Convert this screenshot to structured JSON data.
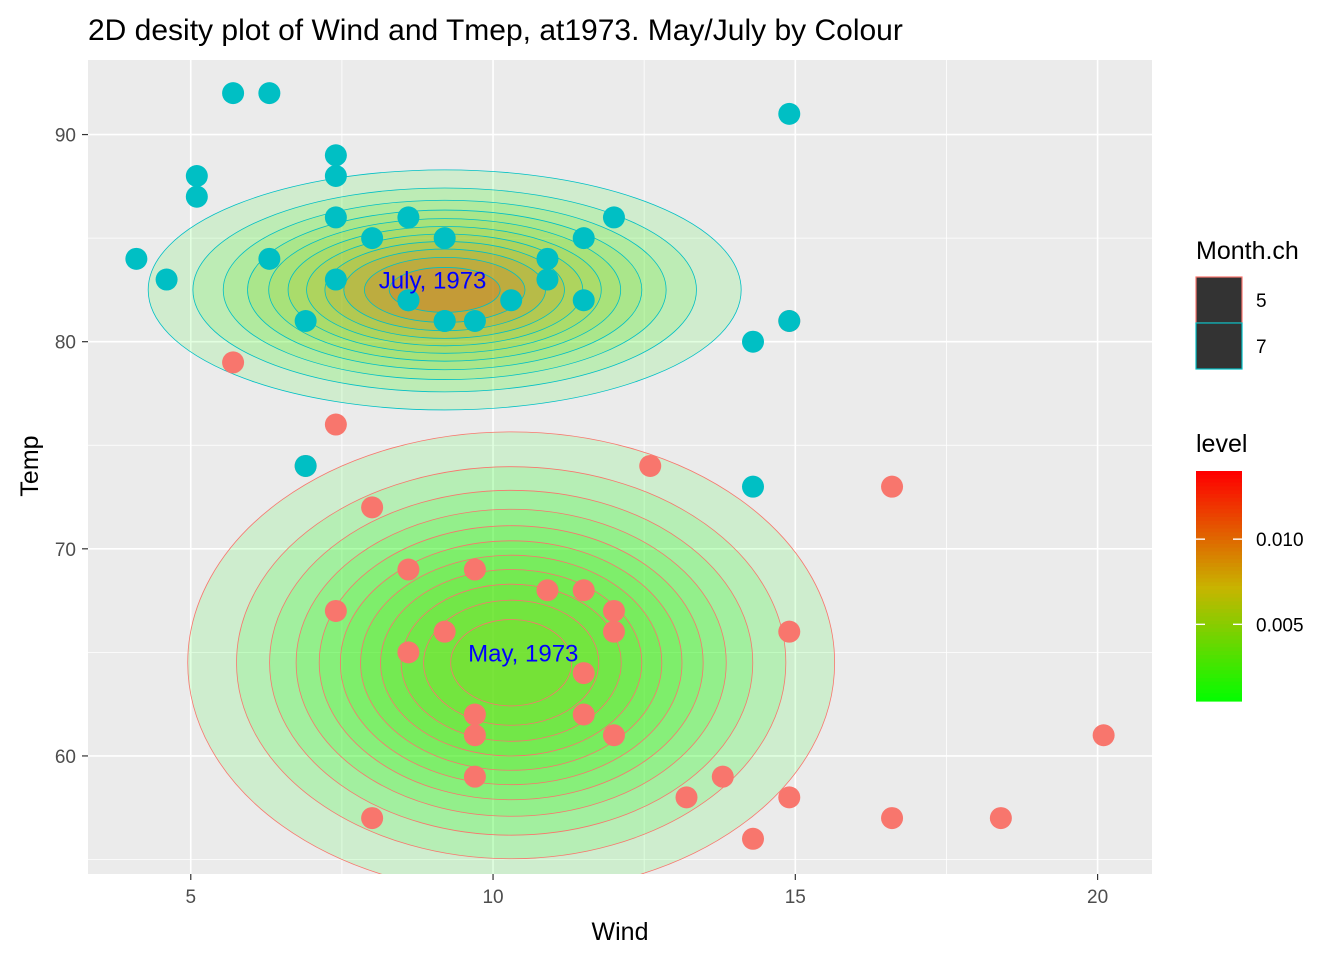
{
  "chart_data": {
    "type": "scatter",
    "title": "2D desity plot of Wind and Tmep, at1973. May/July by Colour",
    "xlabel": "Wind",
    "ylabel": "Temp",
    "xlim": [
      3.3,
      20.9
    ],
    "ylim": [
      54.3,
      93.6
    ],
    "x_ticks": [
      5,
      10,
      15,
      20
    ],
    "y_ticks": [
      60,
      70,
      80,
      90
    ],
    "grid": true,
    "colors": {
      "panel": "#ebebeb",
      "grid": "#ffffff",
      "may": "#f8766d",
      "july": "#00bfc4",
      "level_low": "#00ff00",
      "level_high": "#ff0000",
      "annotation": "#0000ff"
    },
    "series": [
      {
        "name": "5",
        "color": "#f8766d",
        "points": [
          [
            7.4,
            67
          ],
          [
            8.0,
            72
          ],
          [
            12.6,
            74
          ],
          [
            11.5,
            62
          ],
          [
            14.3,
            56
          ],
          [
            14.9,
            66
          ],
          [
            8.6,
            65
          ],
          [
            13.8,
            59
          ],
          [
            20.1,
            61
          ],
          [
            8.6,
            69
          ],
          [
            6.9,
            74
          ],
          [
            9.7,
            69
          ],
          [
            9.2,
            66
          ],
          [
            10.9,
            68
          ],
          [
            13.2,
            58
          ],
          [
            11.5,
            64
          ],
          [
            12.0,
            66
          ],
          [
            18.4,
            57
          ],
          [
            11.5,
            68
          ],
          [
            9.7,
            62
          ],
          [
            9.7,
            59
          ],
          [
            16.6,
            73
          ],
          [
            9.7,
            61
          ],
          [
            12.0,
            61
          ],
          [
            16.6,
            57
          ],
          [
            14.9,
            58
          ],
          [
            8.0,
            57
          ],
          [
            12.0,
            67
          ],
          [
            14.9,
            81
          ],
          [
            5.7,
            79
          ],
          [
            7.4,
            76
          ]
        ]
      },
      {
        "name": "7",
        "color": "#00bfc4",
        "points": [
          [
            4.1,
            84
          ],
          [
            9.2,
            85
          ],
          [
            9.2,
            81
          ],
          [
            10.9,
            84
          ],
          [
            4.6,
            83
          ],
          [
            10.9,
            83
          ],
          [
            5.1,
            88
          ],
          [
            6.3,
            92
          ],
          [
            5.7,
            92
          ],
          [
            7.4,
            89
          ],
          [
            8.6,
            82
          ],
          [
            14.3,
            73
          ],
          [
            14.9,
            81
          ],
          [
            14.9,
            91
          ],
          [
            14.3,
            80
          ],
          [
            6.9,
            81
          ],
          [
            10.3,
            82
          ],
          [
            6.3,
            84
          ],
          [
            5.1,
            87
          ],
          [
            11.5,
            85
          ],
          [
            6.9,
            74
          ],
          [
            9.7,
            81
          ],
          [
            11.5,
            82
          ],
          [
            8.6,
            86
          ],
          [
            8.0,
            85
          ],
          [
            8.6,
            82
          ],
          [
            12.0,
            86
          ],
          [
            7.4,
            88
          ],
          [
            7.4,
            86
          ],
          [
            7.4,
            83
          ],
          [
            9.2,
            81
          ]
        ]
      }
    ],
    "density": [
      {
        "name": "5",
        "center": [
          10.3,
          64.5
        ],
        "spread": [
          2.4,
          5.0
        ],
        "peak": 0.0055
      },
      {
        "name": "7",
        "center": [
          9.2,
          82.5
        ],
        "spread": [
          2.2,
          2.6
        ],
        "peak": 0.014
      }
    ],
    "annotations": [
      {
        "text": "July, 1973",
        "x": 9.0,
        "y": 83
      },
      {
        "text": "May, 1973",
        "x": 10.5,
        "y": 65
      }
    ],
    "legends": [
      {
        "title": "Month.ch",
        "placement": "right",
        "entries": [
          "5",
          "7"
        ]
      },
      {
        "title": "level",
        "placement": "right",
        "ticks": [
          0.005,
          0.01
        ],
        "tick_labels": [
          "0.005",
          "0.010"
        ],
        "range": [
          0.0005,
          0.014
        ]
      }
    ]
  }
}
